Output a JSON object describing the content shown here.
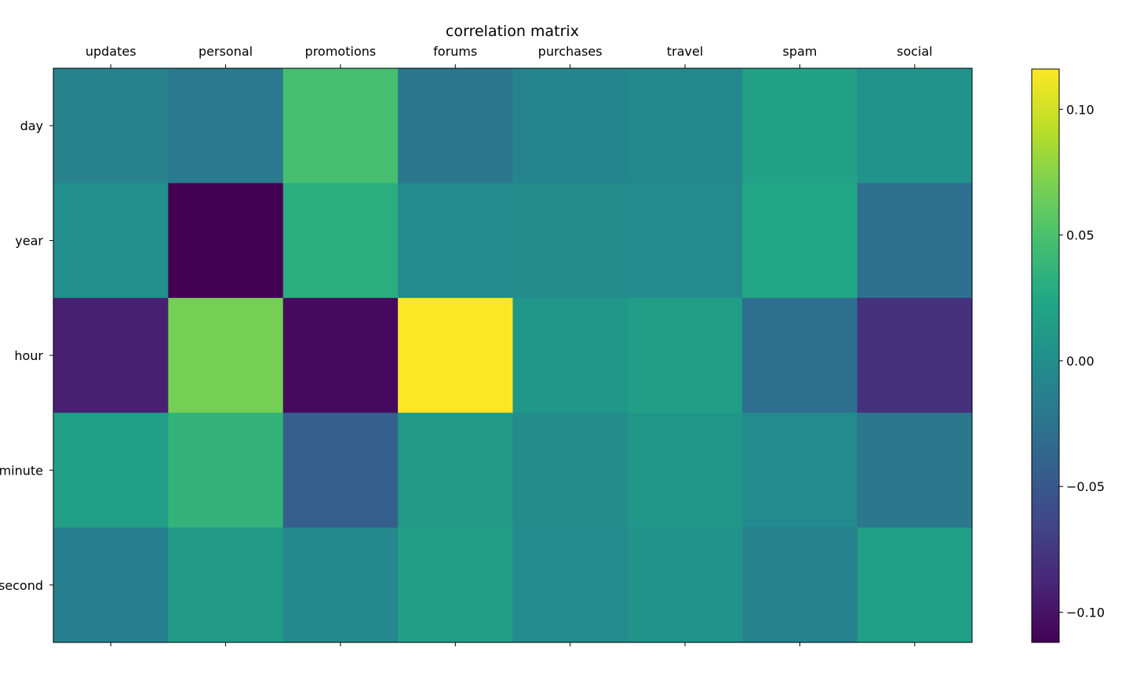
{
  "chart_data": {
    "type": "heatmap",
    "title": "correlation matrix",
    "x_categories": [
      "updates",
      "personal",
      "promotions",
      "forums",
      "purchases",
      "travel",
      "spam",
      "social"
    ],
    "y_categories": [
      "day",
      "year",
      "hour",
      "minute",
      "second"
    ],
    "values": [
      [
        -0.012,
        -0.02,
        0.048,
        -0.022,
        -0.01,
        -0.006,
        0.018,
        0.004
      ],
      [
        0.0,
        -0.112,
        0.03,
        -0.004,
        -0.002,
        -0.004,
        0.024,
        -0.03
      ],
      [
        -0.092,
        0.068,
        -0.106,
        0.116,
        0.008,
        0.014,
        -0.03,
        -0.08
      ],
      [
        0.016,
        0.036,
        -0.044,
        0.01,
        -0.002,
        0.008,
        -0.004,
        -0.022
      ],
      [
        -0.014,
        0.012,
        -0.006,
        0.014,
        -0.004,
        0.004,
        -0.012,
        0.016
      ]
    ],
    "colorbar": {
      "min": -0.112,
      "max": 0.116,
      "ticks": [
        0.1,
        0.05,
        0.0,
        -0.05,
        -0.1
      ],
      "tick_labels": [
        "0.10",
        "0.05",
        "0.00",
        "−0.05",
        "−0.10"
      ]
    },
    "colormap": "viridis"
  }
}
